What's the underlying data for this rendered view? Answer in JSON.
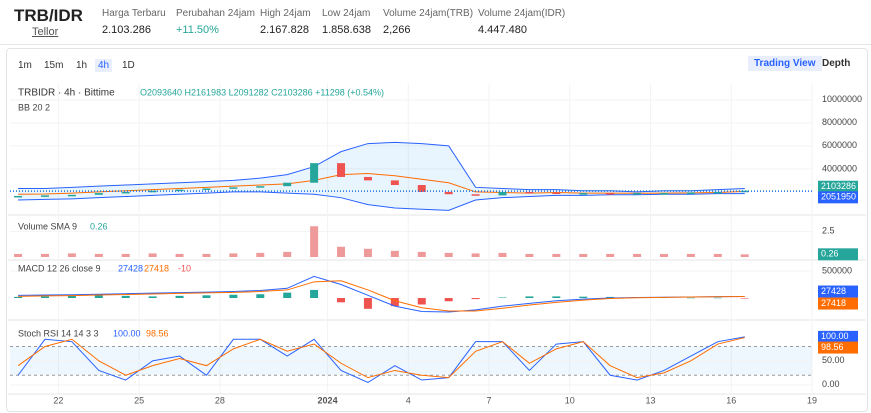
{
  "header": {
    "pair": "TRB/IDR",
    "coin": "Tellor",
    "stats": [
      {
        "label": "Harga Terbaru",
        "value": "2.103.286"
      },
      {
        "label": "Perubahan 24jam",
        "value": "+11.50%"
      },
      {
        "label": "High 24jam",
        "value": "2.167.828"
      },
      {
        "label": "Low 24jam",
        "value": "1.858.638"
      },
      {
        "label": "Volume 24jam(TRB)",
        "value": "2,266"
      },
      {
        "label": "Volume 24jam(IDR)",
        "value": "4.447.480"
      }
    ]
  },
  "toolbar": {
    "intervals": [
      "1m",
      "15m",
      "1h",
      "4h",
      "1D"
    ],
    "active": "4h",
    "views": [
      "Trading View",
      "Depth"
    ]
  },
  "chart_data": {
    "type": "candlestick",
    "legend": "TRBIDR · 4h · Bittime",
    "ohlc": "O2093640 H2161983 L2091282 C2103286 +11298 (+0.54%)",
    "bb_label": "BB 20 2",
    "x": [
      0.5,
      1.5,
      2.5,
      3.5,
      4.5,
      5.5,
      6.5,
      7.5,
      8.5,
      9.5,
      10.5,
      11.5,
      12.5,
      13.5,
      14.5,
      15.5,
      16.5,
      17.5,
      18.5,
      19.5,
      20.5,
      21.5,
      22.5,
      23.5,
      24.5,
      25.5,
      26.5,
      27.5
    ],
    "xlim": [
      0.2,
      30
    ],
    "xticks": [
      {
        "value": 2,
        "label": "22"
      },
      {
        "value": 5,
        "label": "25"
      },
      {
        "value": 8,
        "label": "28"
      },
      {
        "value": 12,
        "label": "2024"
      },
      {
        "value": 15,
        "label": "4"
      },
      {
        "value": 18,
        "label": "7"
      },
      {
        "value": 21,
        "label": "10"
      },
      {
        "value": 24,
        "label": "13"
      },
      {
        "value": 27,
        "label": "16"
      },
      {
        "value": 30,
        "label": "19"
      }
    ],
    "price": {
      "ylim": [
        170000,
        11200000
      ],
      "yticks": [
        10000000,
        8000000,
        6000000,
        4000000
      ],
      "series": [
        {
          "name": "Close",
          "color": "#26a69a",
          "values": [
            1650000,
            1700000,
            1750000,
            1900000,
            2000000,
            2100000,
            2200000,
            2300000,
            2400000,
            2500000,
            2800000,
            4500000,
            3300000,
            3000000,
            2600000,
            2000000,
            1800000,
            1700000,
            2000000,
            1950000,
            1900000,
            1900000,
            1850000,
            1900000,
            1900000,
            1950000,
            2000000,
            2103286
          ]
        },
        {
          "name": "Upper",
          "color": "#2962ff",
          "values": [
            2300000,
            2300000,
            2400000,
            2500000,
            2600000,
            2700000,
            2800000,
            2900000,
            3000000,
            3200000,
            3500000,
            4200000,
            5500000,
            6200000,
            6300000,
            6200000,
            6000000,
            2400000,
            2300000,
            2200000,
            2200000,
            2100000,
            2100000,
            2000000,
            2100000,
            2100000,
            2200000,
            2300000
          ]
        },
        {
          "name": "Basis",
          "color": "#ff6d00",
          "values": [
            1800000,
            1820000,
            1900000,
            2000000,
            2100000,
            2200000,
            2300000,
            2400000,
            2500000,
            2600000,
            2700000,
            3000000,
            3500000,
            3600000,
            3400000,
            3100000,
            2800000,
            2000000,
            1950000,
            1900000,
            1950000,
            1900000,
            1900000,
            1880000,
            1900000,
            1920000,
            1950000,
            2051950
          ]
        },
        {
          "name": "Lower",
          "color": "#2962ff",
          "values": [
            1300000,
            1350000,
            1400000,
            1500000,
            1600000,
            1700000,
            1800000,
            1900000,
            2000000,
            2000000,
            1900000,
            1800000,
            1500000,
            900000,
            600000,
            500000,
            400000,
            1300000,
            1500000,
            1600000,
            1700000,
            1700000,
            1750000,
            1750000,
            1800000,
            1800000,
            1850000,
            1850000
          ]
        }
      ],
      "tags": [
        {
          "value": 2103286,
          "color": "#26a69a"
        },
        {
          "value": 2051950,
          "color": "#2962ff"
        }
      ]
    },
    "volume": {
      "label": "Volume SMA 9",
      "value": 0.26,
      "ylim": [
        0,
        3.8
      ],
      "yticks": [
        2.5
      ],
      "color": "#ef9a9a",
      "values": [
        0.3,
        0.3,
        0.35,
        0.3,
        0.3,
        0.35,
        0.3,
        0.3,
        0.35,
        0.4,
        0.5,
        3.0,
        1.0,
        0.8,
        0.6,
        0.5,
        0.4,
        0.35,
        0.4,
        0.3,
        0.3,
        0.3,
        0.3,
        0.3,
        0.3,
        0.3,
        0.3,
        0.26
      ]
    },
    "macd": {
      "label": "MACD 12 26 close 9",
      "ylim": [
        -370000,
        667000
      ],
      "yticks": [
        500000
      ],
      "hist": [
        20000,
        30000,
        40000,
        50000,
        40000,
        30000,
        40000,
        50000,
        60000,
        70000,
        100000,
        150000,
        -80000,
        -200000,
        -150000,
        -120000,
        -60000,
        -20000,
        10000,
        30000,
        30000,
        25000,
        20000,
        15000,
        10000,
        5000,
        5000,
        -10
      ],
      "series": [
        {
          "name": "MACD",
          "color": "#2962ff",
          "values": [
            50000,
            55000,
            60000,
            70000,
            80000,
            90000,
            100000,
            110000,
            120000,
            140000,
            180000,
            400000,
            250000,
            50000,
            -150000,
            -250000,
            -260000,
            -220000,
            -150000,
            -100000,
            -50000,
            -20000,
            0,
            10000,
            15000,
            20000,
            25000,
            27428
          ]
        },
        {
          "name": "Signal",
          "color": "#ff6d00",
          "values": [
            30000,
            40000,
            45000,
            55000,
            65000,
            75000,
            85000,
            95000,
            105000,
            120000,
            150000,
            300000,
            320000,
            150000,
            -50000,
            -180000,
            -240000,
            -240000,
            -190000,
            -130000,
            -80000,
            -40000,
            -10000,
            5000,
            12000,
            18000,
            23000,
            27418
          ]
        }
      ],
      "values_text": [
        "27428",
        "27418",
        "-10"
      ]
    },
    "stoch": {
      "label": "Stoch RSI 14 14 3 3",
      "ylim": [
        -17,
        131
      ],
      "yticks": [
        {
          "value": 50,
          "label": "50.00"
        },
        {
          "value": 0,
          "label": "0.00"
        }
      ],
      "bands": [
        80,
        20
      ],
      "series": [
        {
          "name": "K",
          "color": "#2962ff",
          "values": [
            20,
            95,
            90,
            30,
            10,
            50,
            60,
            20,
            95,
            95,
            60,
            95,
            30,
            5,
            40,
            10,
            15,
            90,
            90,
            30,
            85,
            90,
            20,
            10,
            30,
            60,
            90,
            100
          ],
          "value_label": "100.00"
        },
        {
          "name": "D",
          "color": "#ff6d00",
          "values": [
            40,
            80,
            95,
            50,
            20,
            40,
            55,
            40,
            75,
            95,
            70,
            85,
            45,
            15,
            30,
            20,
            15,
            70,
            90,
            45,
            75,
            90,
            40,
            15,
            25,
            50,
            85,
            98.56
          ],
          "value_label": "98.56"
        }
      ]
    }
  }
}
